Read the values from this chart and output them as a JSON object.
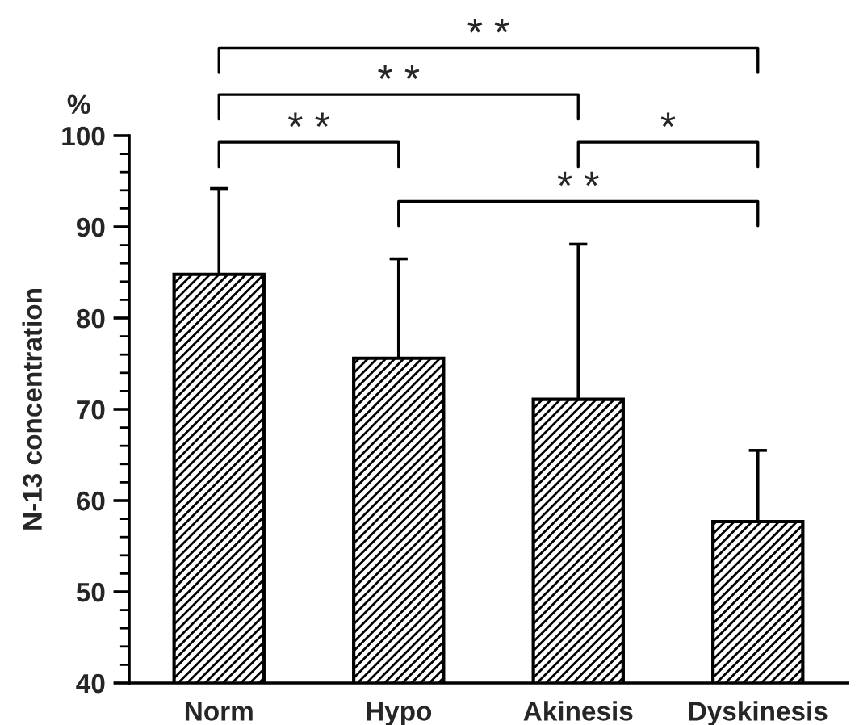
{
  "chart_data": {
    "type": "bar",
    "ylabel": "N-13 concentration",
    "categories": [
      "Norm",
      "Hypo",
      "Akinesis",
      "Dyskinesis"
    ],
    "values": [
      84.8,
      75.6,
      71.1,
      57.7
    ],
    "errors": [
      [
        84.8,
        94.2
      ],
      [
        75.6,
        86.5
      ],
      [
        71.1,
        88.1
      ],
      [
        57.7,
        65.5
      ]
    ],
    "color": "#000000",
    "ylim": [
      40,
      100
    ],
    "yticks": [
      40,
      50,
      60,
      70,
      80,
      90,
      100
    ],
    "grid": false,
    "legend": false,
    "annotations": [
      "%",
      "* *",
      "* *",
      "* *",
      "*",
      "* *"
    ]
  }
}
